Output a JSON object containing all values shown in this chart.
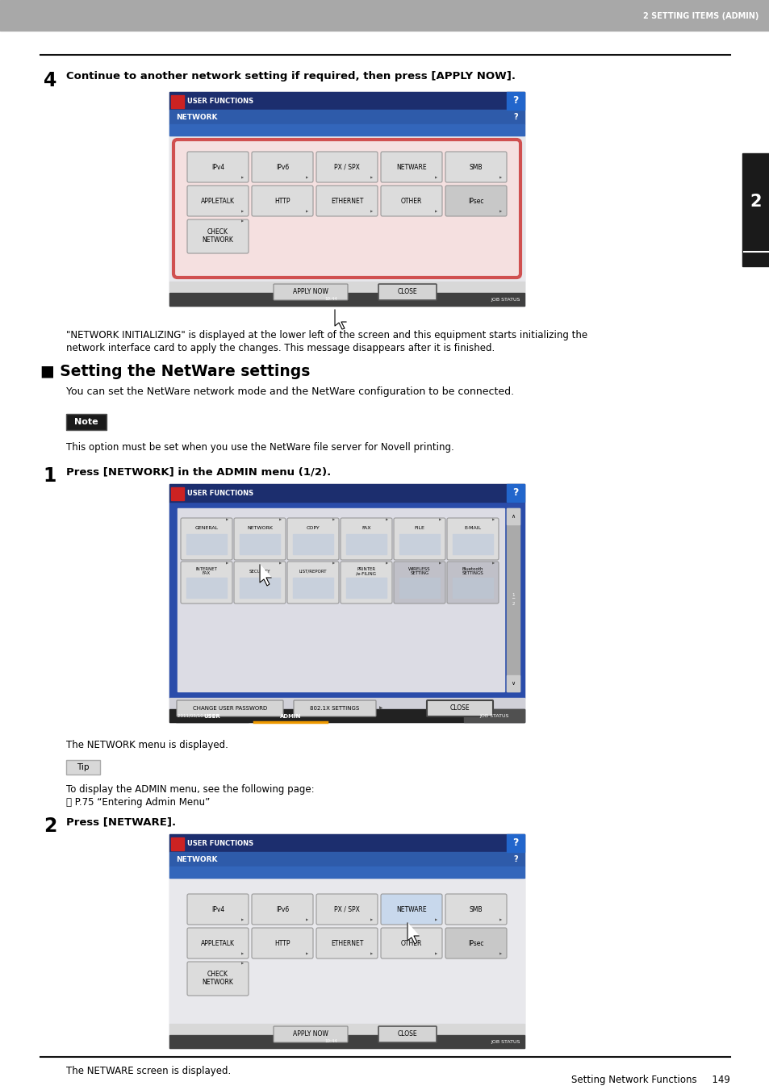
{
  "page_bg": "#ffffff",
  "header_bg": "#a8a8a8",
  "header_text": "2 SETTING ITEMS (ADMIN)",
  "header_text_color": "#ffffff",
  "sidebar_bg": "#1a1a1a",
  "sidebar_text": "2",
  "top_line_color": "#000000",
  "bottom_line_color": "#000000",
  "footer_text": "Setting Network Functions     149",
  "step4_label": "4",
  "step4_text": "Continue to another network setting if required, then press [APPLY NOW].",
  "step4_desc1": "\"NETWORK INITIALIZING\" is displayed at the lower left of the screen and this equipment starts initializing the",
  "step4_desc2": "network interface card to apply the changes. This message disappears after it is finished.",
  "section_title": "■ Setting the NetWare settings",
  "section_desc": "You can set the NetWare network mode and the NetWare configuration to be connected.",
  "note_label": "Note",
  "note_text": "This option must be set when you use the NetWare file server for Novell printing.",
  "step1_label": "1",
  "step1_text": "Press [NETWORK] in the ADMIN menu (1/2).",
  "step1_desc": "The NETWORK menu is displayed.",
  "tip_label": "Tip",
  "tip_line1": "To display the ADMIN menu, see the following page:",
  "tip_line2": "⎙ P.75 “Entering Admin Menu”",
  "step2_label": "2",
  "step2_text": "Press [NETWARE].",
  "step2_desc": "The NETWARE screen is displayed."
}
